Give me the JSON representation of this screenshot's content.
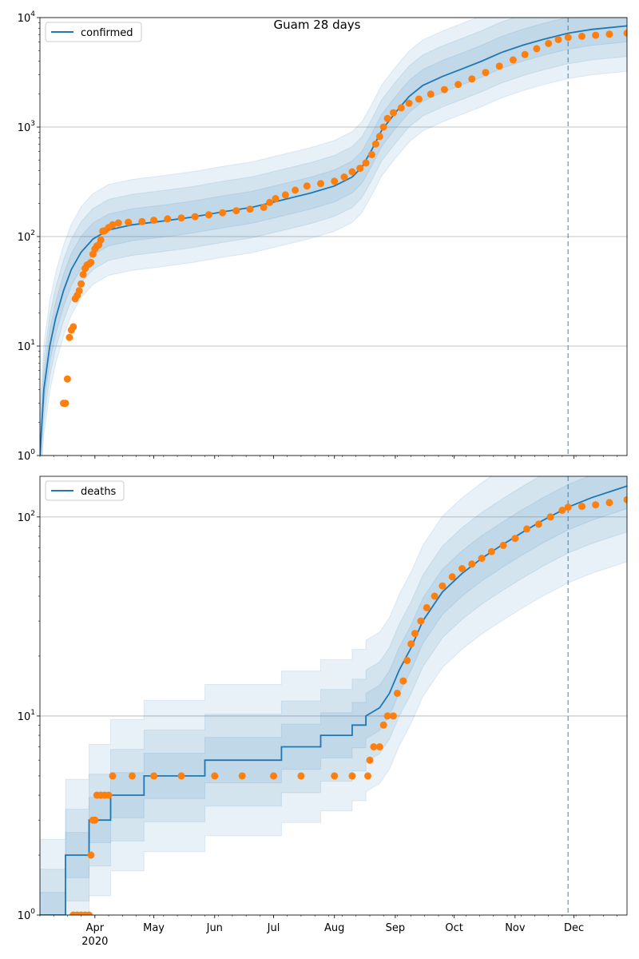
{
  "figure_title": "Guam 28 days",
  "colors": {
    "model_line": "#1f77b4",
    "observed_points": "#ff7f0e",
    "band": "#1f77b4",
    "grid": "#b0b0b0",
    "forecast_marker": "#1f77b4"
  },
  "x_axis": {
    "start_date": "2020-03-04",
    "end_date": "2020-12-28",
    "month_ticks": [
      {
        "date": "2020-04-01",
        "label": "Apr",
        "sublabel": "2020"
      },
      {
        "date": "2020-05-01",
        "label": "May",
        "sublabel": ""
      },
      {
        "date": "2020-06-01",
        "label": "Jun",
        "sublabel": ""
      },
      {
        "date": "2020-07-01",
        "label": "Jul",
        "sublabel": ""
      },
      {
        "date": "2020-08-01",
        "label": "Aug",
        "sublabel": ""
      },
      {
        "date": "2020-09-01",
        "label": "Sep",
        "sublabel": ""
      },
      {
        "date": "2020-10-01",
        "label": "Oct",
        "sublabel": ""
      },
      {
        "date": "2020-11-01",
        "label": "Nov",
        "sublabel": ""
      },
      {
        "date": "2020-12-01",
        "label": "Dec",
        "sublabel": ""
      }
    ],
    "forecast_start": "2020-11-28"
  },
  "chart_data": [
    {
      "type": "line",
      "legend": "confirmed",
      "legend_position": "upper-left",
      "y_scale": "log",
      "ylim": [
        1,
        10000
      ],
      "y_ticks": [
        {
          "value": 1,
          "base": "10",
          "exp": "0"
        },
        {
          "value": 10,
          "base": "10",
          "exp": "1"
        },
        {
          "value": 100,
          "base": "10",
          "exp": "2"
        },
        {
          "value": 1000,
          "base": "10",
          "exp": "3"
        },
        {
          "value": 10000,
          "base": "10",
          "exp": "4"
        }
      ],
      "grid": true,
      "model_series": [
        [
          "2020-03-04",
          1
        ],
        [
          "2020-03-06",
          4
        ],
        [
          "2020-03-09",
          10
        ],
        [
          "2020-03-12",
          18
        ],
        [
          "2020-03-16",
          32
        ],
        [
          "2020-03-20",
          50
        ],
        [
          "2020-03-25",
          72
        ],
        [
          "2020-03-31",
          95
        ],
        [
          "2020-04-08",
          115
        ],
        [
          "2020-04-20",
          128
        ],
        [
          "2020-05-05",
          138
        ],
        [
          "2020-05-20",
          150
        ],
        [
          "2020-06-05",
          168
        ],
        [
          "2020-06-20",
          185
        ],
        [
          "2020-07-05",
          215
        ],
        [
          "2020-07-20",
          250
        ],
        [
          "2020-08-01",
          290
        ],
        [
          "2020-08-10",
          350
        ],
        [
          "2020-08-15",
          430
        ],
        [
          "2020-08-20",
          620
        ],
        [
          "2020-08-25",
          930
        ],
        [
          "2020-09-01",
          1350
        ],
        [
          "2020-09-08",
          1900
        ],
        [
          "2020-09-15",
          2400
        ],
        [
          "2020-09-25",
          2900
        ],
        [
          "2020-10-05",
          3400
        ],
        [
          "2020-10-15",
          4000
        ],
        [
          "2020-10-25",
          4800
        ],
        [
          "2020-11-05",
          5600
        ],
        [
          "2020-11-15",
          6300
        ],
        [
          "2020-11-28",
          7200
        ],
        [
          "2020-12-10",
          7800
        ],
        [
          "2020-12-28",
          8400
        ]
      ],
      "band_factors": [
        2.6,
        1.9,
        1.4
      ],
      "observed": [
        [
          "2020-03-16",
          3
        ],
        [
          "2020-03-17",
          3
        ],
        [
          "2020-03-18",
          5
        ],
        [
          "2020-03-19",
          12
        ],
        [
          "2020-03-20",
          14
        ],
        [
          "2020-03-21",
          15
        ],
        [
          "2020-03-22",
          27
        ],
        [
          "2020-03-23",
          29
        ],
        [
          "2020-03-24",
          32
        ],
        [
          "2020-03-25",
          37
        ],
        [
          "2020-03-26",
          45
        ],
        [
          "2020-03-27",
          51
        ],
        [
          "2020-03-28",
          55
        ],
        [
          "2020-03-29",
          56
        ],
        [
          "2020-03-30",
          58
        ],
        [
          "2020-03-31",
          69
        ],
        [
          "2020-04-01",
          77
        ],
        [
          "2020-04-02",
          82
        ],
        [
          "2020-04-03",
          84
        ],
        [
          "2020-04-04",
          93
        ],
        [
          "2020-04-05",
          112
        ],
        [
          "2020-04-06",
          113
        ],
        [
          "2020-04-08",
          121
        ],
        [
          "2020-04-10",
          128
        ],
        [
          "2020-04-13",
          133
        ],
        [
          "2020-04-18",
          135
        ],
        [
          "2020-04-25",
          137
        ],
        [
          "2020-05-01",
          141
        ],
        [
          "2020-05-08",
          145
        ],
        [
          "2020-05-15",
          148
        ],
        [
          "2020-05-22",
          152
        ],
        [
          "2020-05-29",
          158
        ],
        [
          "2020-06-05",
          165
        ],
        [
          "2020-06-12",
          172
        ],
        [
          "2020-06-19",
          178
        ],
        [
          "2020-06-26",
          185
        ],
        [
          "2020-06-29",
          205
        ],
        [
          "2020-07-02",
          222
        ],
        [
          "2020-07-07",
          240
        ],
        [
          "2020-07-12",
          265
        ],
        [
          "2020-07-18",
          290
        ],
        [
          "2020-07-25",
          305
        ],
        [
          "2020-08-01",
          320
        ],
        [
          "2020-08-06",
          350
        ],
        [
          "2020-08-10",
          390
        ],
        [
          "2020-08-14",
          420
        ],
        [
          "2020-08-17",
          470
        ],
        [
          "2020-08-20",
          560
        ],
        [
          "2020-08-22",
          700
        ],
        [
          "2020-08-24",
          820
        ],
        [
          "2020-08-26",
          1000
        ],
        [
          "2020-08-28",
          1200
        ],
        [
          "2020-08-31",
          1350
        ],
        [
          "2020-09-04",
          1500
        ],
        [
          "2020-09-08",
          1650
        ],
        [
          "2020-09-13",
          1800
        ],
        [
          "2020-09-19",
          2000
        ],
        [
          "2020-09-26",
          2200
        ],
        [
          "2020-10-03",
          2450
        ],
        [
          "2020-10-10",
          2750
        ],
        [
          "2020-10-17",
          3150
        ],
        [
          "2020-10-24",
          3600
        ],
        [
          "2020-10-31",
          4100
        ],
        [
          "2020-11-06",
          4600
        ],
        [
          "2020-11-12",
          5200
        ],
        [
          "2020-11-18",
          5800
        ],
        [
          "2020-11-23",
          6300
        ],
        [
          "2020-11-28",
          6600
        ],
        [
          "2020-12-05",
          6750
        ],
        [
          "2020-12-12",
          6900
        ],
        [
          "2020-12-19",
          7050
        ],
        [
          "2020-12-28",
          7200
        ]
      ]
    },
    {
      "type": "line",
      "legend": "deaths",
      "legend_position": "upper-left",
      "y_scale": "log",
      "ylim": [
        1,
        160
      ],
      "y_ticks": [
        {
          "value": 1,
          "base": "10",
          "exp": "0"
        },
        {
          "value": 10,
          "base": "10",
          "exp": "1"
        },
        {
          "value": 100,
          "base": "10",
          "exp": "2"
        }
      ],
      "grid": true,
      "model_series": [
        [
          "2020-03-04",
          1
        ],
        [
          "2020-03-17",
          1
        ],
        [
          "2020-03-17",
          2
        ],
        [
          "2020-03-29",
          2
        ],
        [
          "2020-03-29",
          3
        ],
        [
          "2020-04-09",
          3
        ],
        [
          "2020-04-09",
          4
        ],
        [
          "2020-04-26",
          4
        ],
        [
          "2020-04-26",
          5
        ],
        [
          "2020-05-27",
          5
        ],
        [
          "2020-05-27",
          6
        ],
        [
          "2020-07-05",
          6
        ],
        [
          "2020-07-05",
          7
        ],
        [
          "2020-07-25",
          7
        ],
        [
          "2020-07-25",
          8
        ],
        [
          "2020-08-10",
          8
        ],
        [
          "2020-08-10",
          9
        ],
        [
          "2020-08-17",
          9
        ],
        [
          "2020-08-17",
          10
        ],
        [
          "2020-08-24",
          11
        ],
        [
          "2020-08-29",
          13
        ],
        [
          "2020-09-03",
          17
        ],
        [
          "2020-09-09",
          22
        ],
        [
          "2020-09-15",
          30
        ],
        [
          "2020-09-25",
          42
        ],
        [
          "2020-10-05",
          52
        ],
        [
          "2020-10-15",
          62
        ],
        [
          "2020-10-25",
          72
        ],
        [
          "2020-11-05",
          84
        ],
        [
          "2020-11-15",
          96
        ],
        [
          "2020-11-28",
          112
        ],
        [
          "2020-12-10",
          125
        ],
        [
          "2020-12-28",
          143
        ]
      ],
      "band_factors": [
        2.4,
        1.7,
        1.3
      ],
      "observed": [
        [
          "2020-03-21",
          1
        ],
        [
          "2020-03-23",
          1
        ],
        [
          "2020-03-25",
          1
        ],
        [
          "2020-03-27",
          1
        ],
        [
          "2020-03-29",
          1
        ],
        [
          "2020-03-30",
          2
        ],
        [
          "2020-03-31",
          3
        ],
        [
          "2020-04-01",
          3
        ],
        [
          "2020-04-02",
          4
        ],
        [
          "2020-04-04",
          4
        ],
        [
          "2020-04-06",
          4
        ],
        [
          "2020-04-08",
          4
        ],
        [
          "2020-04-10",
          5
        ],
        [
          "2020-04-20",
          5
        ],
        [
          "2020-05-01",
          5
        ],
        [
          "2020-05-15",
          5
        ],
        [
          "2020-06-01",
          5
        ],
        [
          "2020-06-15",
          5
        ],
        [
          "2020-07-01",
          5
        ],
        [
          "2020-07-15",
          5
        ],
        [
          "2020-08-01",
          5
        ],
        [
          "2020-08-10",
          5
        ],
        [
          "2020-08-18",
          5
        ],
        [
          "2020-08-19",
          6
        ],
        [
          "2020-08-21",
          7
        ],
        [
          "2020-08-24",
          7
        ],
        [
          "2020-08-26",
          9
        ],
        [
          "2020-08-28",
          10
        ],
        [
          "2020-08-31",
          10
        ],
        [
          "2020-09-02",
          13
        ],
        [
          "2020-09-05",
          15
        ],
        [
          "2020-09-07",
          19
        ],
        [
          "2020-09-09",
          23
        ],
        [
          "2020-09-11",
          26
        ],
        [
          "2020-09-14",
          30
        ],
        [
          "2020-09-17",
          35
        ],
        [
          "2020-09-21",
          40
        ],
        [
          "2020-09-25",
          45
        ],
        [
          "2020-09-30",
          50
        ],
        [
          "2020-10-05",
          55
        ],
        [
          "2020-10-10",
          58
        ],
        [
          "2020-10-15",
          62
        ],
        [
          "2020-10-20",
          67
        ],
        [
          "2020-10-26",
          72
        ],
        [
          "2020-11-01",
          78
        ],
        [
          "2020-11-07",
          87
        ],
        [
          "2020-11-13",
          92
        ],
        [
          "2020-11-19",
          100
        ],
        [
          "2020-11-25",
          108
        ],
        [
          "2020-11-28",
          112
        ],
        [
          "2020-12-05",
          113
        ],
        [
          "2020-12-12",
          115
        ],
        [
          "2020-12-19",
          118
        ],
        [
          "2020-12-28",
          122
        ]
      ]
    }
  ]
}
